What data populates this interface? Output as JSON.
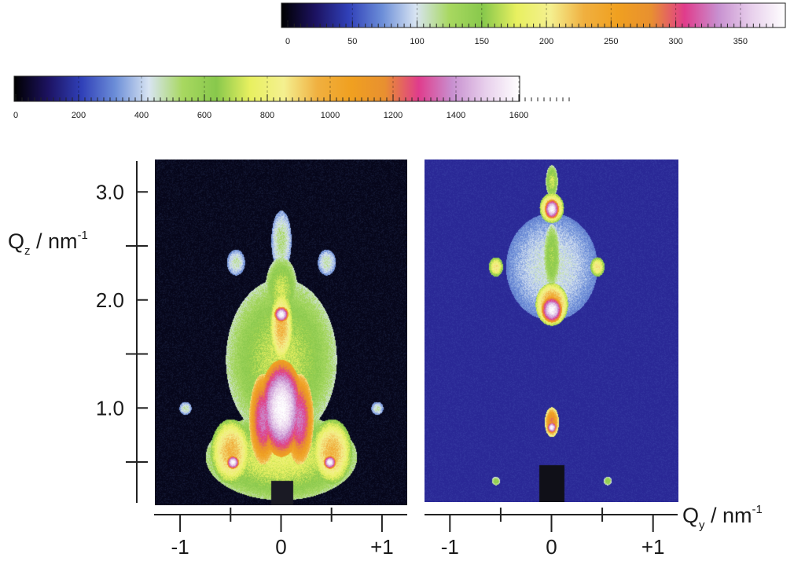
{
  "chart_data": [
    {
      "type": "colorbar",
      "id": "colorbar-top",
      "ticks": [
        0,
        50,
        100,
        150,
        200,
        250,
        300,
        350
      ],
      "tick_labels": [
        "0",
        "50",
        "100",
        "150",
        "200",
        "250",
        "300",
        "350"
      ],
      "range": [
        0,
        375
      ],
      "colors": [
        "#000000",
        "#1c1260",
        "#3040b8",
        "#6c8ed8",
        "#d8e4f2",
        "#a8d860",
        "#88c84c",
        "#e8f060",
        "#f4f090",
        "#f0b040",
        "#f0a020",
        "#e89030",
        "#e03c8c",
        "#c890d0",
        "#e8d0ec",
        "#ffffff"
      ]
    },
    {
      "type": "colorbar",
      "id": "colorbar-bottom",
      "ticks": [
        0,
        200,
        400,
        600,
        800,
        1000,
        1200,
        1400,
        1600
      ],
      "tick_labels": [
        "0",
        "200",
        "400",
        "600",
        "800",
        "1000",
        "1200",
        "1400",
        "1600"
      ],
      "range": [
        0,
        1760
      ],
      "colors": [
        "#000000",
        "#1c1260",
        "#3040b8",
        "#6c8ed8",
        "#d8e4f2",
        "#a8d860",
        "#88c84c",
        "#e8f060",
        "#f4f090",
        "#f0b040",
        "#f0a020",
        "#e89030",
        "#e03c8c",
        "#c890d0",
        "#e8d0ec",
        "#ffffff"
      ]
    },
    {
      "type": "heatmap",
      "id": "panel-left",
      "background": "#06061a",
      "xlim": [
        -1.25,
        1.25
      ],
      "ylim": [
        0.1,
        3.3
      ],
      "beamstop": {
        "x": [
          -0.1,
          0.12
        ],
        "y": [
          0.1,
          0.33
        ],
        "color": "#1a1a24"
      },
      "features": [
        {
          "x": 0.0,
          "y": 2.55,
          "sx": 0.1,
          "sy": 0.28,
          "level": 0.32
        },
        {
          "x": -0.45,
          "y": 2.35,
          "sx": 0.09,
          "sy": 0.12,
          "level": 0.3
        },
        {
          "x": 0.45,
          "y": 2.35,
          "sx": 0.09,
          "sy": 0.12,
          "level": 0.3
        },
        {
          "x": -0.95,
          "y": 1.0,
          "sx": 0.06,
          "sy": 0.06,
          "level": 0.3
        },
        {
          "x": 0.95,
          "y": 1.0,
          "sx": 0.06,
          "sy": 0.06,
          "level": 0.3
        },
        {
          "x": 0.0,
          "y": 2.1,
          "sx": 0.16,
          "sy": 0.3,
          "level": 0.45
        },
        {
          "x": 0.0,
          "y": 1.45,
          "sx": 0.55,
          "sy": 0.75,
          "level": 0.45
        },
        {
          "x": 0.0,
          "y": 0.55,
          "sx": 0.75,
          "sy": 0.4,
          "level": 0.48
        },
        {
          "x": -0.5,
          "y": 0.6,
          "sx": 0.2,
          "sy": 0.3,
          "level": 0.6
        },
        {
          "x": 0.5,
          "y": 0.6,
          "sx": 0.2,
          "sy": 0.3,
          "level": 0.6
        },
        {
          "x": 0.0,
          "y": 1.75,
          "sx": 0.12,
          "sy": 0.35,
          "level": 0.6
        },
        {
          "x": 0.0,
          "y": 1.87,
          "sx": 0.07,
          "sy": 0.07,
          "level": 1.0
        },
        {
          "x": -0.18,
          "y": 0.9,
          "sx": 0.14,
          "sy": 0.42,
          "level": 0.85
        },
        {
          "x": 0.18,
          "y": 0.9,
          "sx": 0.14,
          "sy": 0.42,
          "level": 0.85
        },
        {
          "x": 0.0,
          "y": 1.0,
          "sx": 0.22,
          "sy": 0.45,
          "level": 1.0
        },
        {
          "x": -0.48,
          "y": 0.5,
          "sx": 0.06,
          "sy": 0.06,
          "level": 1.0
        },
        {
          "x": 0.48,
          "y": 0.5,
          "sx": 0.06,
          "sy": 0.06,
          "level": 1.0
        }
      ]
    },
    {
      "type": "heatmap",
      "id": "panel-right",
      "background": "#2a2896",
      "xlim": [
        -1.25,
        1.25
      ],
      "ylim": [
        0.1,
        3.3
      ],
      "beamstop": {
        "x": [
          -0.12,
          0.12
        ],
        "y": [
          0.1,
          0.45
        ],
        "color": "#101018"
      },
      "features": [
        {
          "x": 0.0,
          "y": 2.3,
          "sx": 0.45,
          "sy": 0.5,
          "level": 0.28
        },
        {
          "x": -0.55,
          "y": 2.3,
          "sx": 0.07,
          "sy": 0.09,
          "level": 0.55
        },
        {
          "x": 0.45,
          "y": 2.3,
          "sx": 0.07,
          "sy": 0.09,
          "level": 0.55
        },
        {
          "x": 0.0,
          "y": 3.1,
          "sx": 0.06,
          "sy": 0.15,
          "level": 0.45
        },
        {
          "x": 0.0,
          "y": 2.85,
          "sx": 0.12,
          "sy": 0.14,
          "level": 0.62
        },
        {
          "x": 0.0,
          "y": 2.4,
          "sx": 0.08,
          "sy": 0.3,
          "level": 0.42
        },
        {
          "x": 0.0,
          "y": 1.95,
          "sx": 0.16,
          "sy": 0.2,
          "level": 0.65
        },
        {
          "x": 0.0,
          "y": 0.85,
          "sx": 0.07,
          "sy": 0.14,
          "level": 0.75
        },
        {
          "x": -0.55,
          "y": 0.3,
          "sx": 0.04,
          "sy": 0.04,
          "level": 0.4
        },
        {
          "x": 0.55,
          "y": 0.3,
          "sx": 0.04,
          "sy": 0.04,
          "level": 0.4
        },
        {
          "x": 0.0,
          "y": 2.84,
          "sx": 0.07,
          "sy": 0.09,
          "level": 1.0
        },
        {
          "x": 0.0,
          "y": 1.9,
          "sx": 0.1,
          "sy": 0.12,
          "level": 1.0
        },
        {
          "x": 0.0,
          "y": 0.8,
          "sx": 0.045,
          "sy": 0.05,
          "level": 1.0
        }
      ]
    },
    {
      "type": "axes",
      "id": "axes",
      "ylabel_main": "Q",
      "ylabel_sub": "z",
      "ylabel_rest": " / nm",
      "ylabel_sup": "-1",
      "xlabel_main": "Q",
      "xlabel_sub": "y",
      "xlabel_rest": " / nm",
      "xlabel_sup": "-1",
      "ylim": [
        0.1,
        3.3
      ],
      "y_major_ticks": [
        1.0,
        2.0,
        3.0
      ],
      "y_major_labels": [
        "1.0",
        "2.0",
        "3.0"
      ],
      "y_minor_ticks": [
        0.5,
        1.5,
        2.5
      ],
      "xlim": [
        -1.25,
        1.25
      ],
      "x_major_ticks": [
        -1,
        0,
        1
      ],
      "x_major_labels": [
        "-1",
        "0",
        "+1"
      ],
      "x_minor_ticks": [
        -0.5,
        0.5
      ]
    }
  ]
}
